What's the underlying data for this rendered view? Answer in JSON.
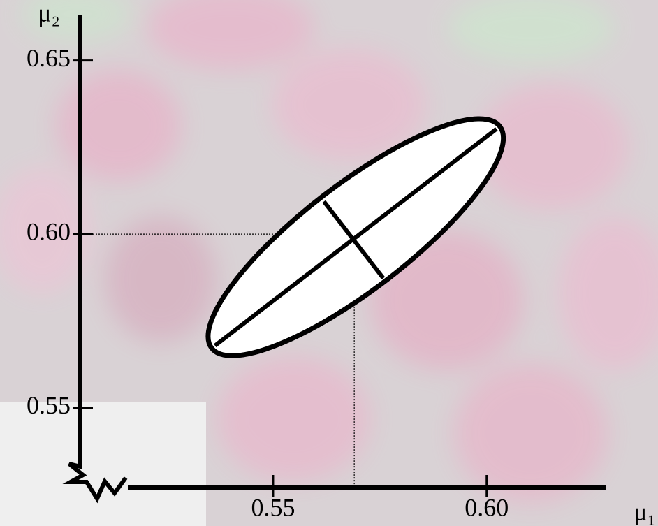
{
  "chart_data": {
    "type": "ellipse",
    "x_label": "μ₁",
    "y_label": "μ₂",
    "xlim": [
      0.516,
      0.628
    ],
    "ylim": [
      0.527,
      0.663
    ],
    "xticks": [
      0.55,
      {
        "value": 0.6,
        "label": "0.60"
      }
    ],
    "yticks": [
      0.55,
      {
        "value": 0.6,
        "label": "0.60"
      },
      0.65
    ],
    "center": {
      "x": 0.569,
      "y": 0.6
    },
    "major_axis": {
      "x": [
        0.5364,
        0.6023
      ],
      "y": [
        0.5679,
        0.6303
      ]
    },
    "minor_axis": {
      "x": [
        0.5619,
        0.5758
      ],
      "y": [
        0.6094,
        0.5873
      ]
    },
    "color": "#000000",
    "fill": "#ffffff"
  }
}
